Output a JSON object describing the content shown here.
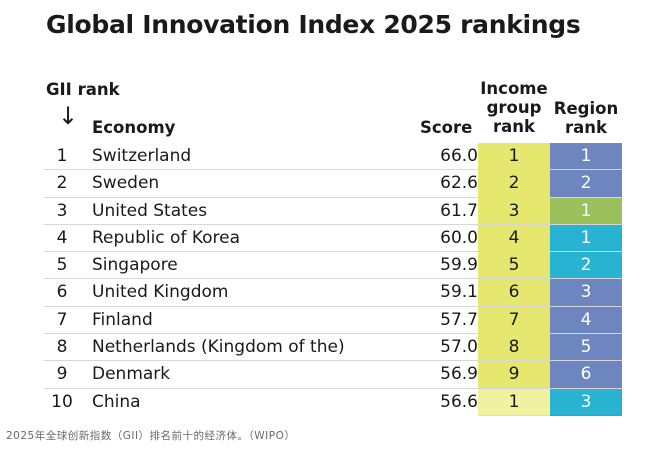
{
  "title": "Global Innovation Index 2025 rankings",
  "headers": {
    "gii_rank": "GII rank",
    "arrow": "↓",
    "economy": "Economy",
    "score": "Score",
    "income_group_rank_lines": [
      "Income",
      "group",
      "rank"
    ],
    "region_rank_lines": [
      "Region",
      "rank"
    ]
  },
  "colors": {
    "income_bg": "#e6e76e",
    "income_bg_alt": "#f1f2a0",
    "region_bg": "#6e86bf",
    "region_teal": "#27b3d1",
    "region_green": "#9bc15c"
  },
  "chart_data": {
    "type": "table",
    "title": "Global Innovation Index 2025 rankings",
    "columns": [
      "GII rank",
      "Economy",
      "Score",
      "Income group rank",
      "Region rank"
    ],
    "rows": [
      {
        "gii_rank": 1,
        "economy": "Switzerland",
        "score": "66.0",
        "income_rank": 1,
        "region_rank": 1,
        "region_color": "#6e86bf"
      },
      {
        "gii_rank": 2,
        "economy": "Sweden",
        "score": "62.6",
        "income_rank": 2,
        "region_rank": 2,
        "region_color": "#6e86bf"
      },
      {
        "gii_rank": 3,
        "economy": "United States",
        "score": "61.7",
        "income_rank": 3,
        "region_rank": 1,
        "region_color": "#9bc15c"
      },
      {
        "gii_rank": 4,
        "economy": "Republic of Korea",
        "score": "60.0",
        "income_rank": 4,
        "region_rank": 1,
        "region_color": "#27b3d1"
      },
      {
        "gii_rank": 5,
        "economy": "Singapore",
        "score": "59.9",
        "income_rank": 5,
        "region_rank": 2,
        "region_color": "#27b3d1"
      },
      {
        "gii_rank": 6,
        "economy": "United Kingdom",
        "score": "59.1",
        "income_rank": 6,
        "region_rank": 3,
        "region_color": "#6e86bf"
      },
      {
        "gii_rank": 7,
        "economy": "Finland",
        "score": "57.7",
        "income_rank": 7,
        "region_rank": 4,
        "region_color": "#6e86bf"
      },
      {
        "gii_rank": 8,
        "economy": "Netherlands (Kingdom of the)",
        "score": "57.0",
        "income_rank": 8,
        "region_rank": 5,
        "region_color": "#6e86bf"
      },
      {
        "gii_rank": 9,
        "economy": "Denmark",
        "score": "56.9",
        "income_rank": 9,
        "region_rank": 6,
        "region_color": "#6e86bf"
      },
      {
        "gii_rank": 10,
        "economy": "China",
        "score": "56.6",
        "income_rank": 1,
        "region_rank": 3,
        "region_color": "#27b3d1",
        "income_color": "#f1f2a0"
      }
    ]
  },
  "footnote": "2025年全球创新指数（GII）排名前十的经济体。（WIPO）"
}
